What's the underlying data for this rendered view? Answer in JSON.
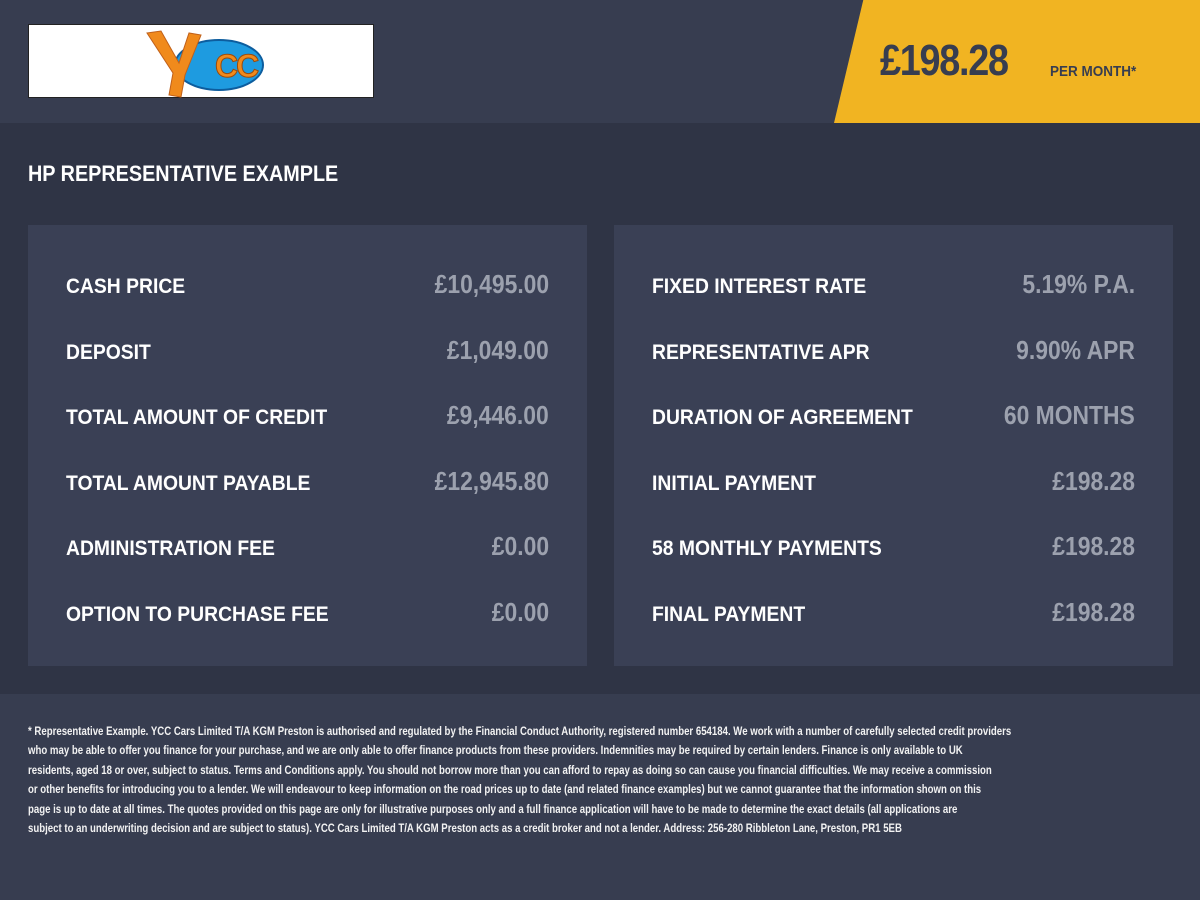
{
  "header": {
    "logo_text": "YCC",
    "price": "£198.28",
    "per_month": "PER MONTH*",
    "brand_color": "#f1b422"
  },
  "title": "HP REPRESENTATIVE EXAMPLE",
  "left_panel": [
    {
      "label": "CASH PRICE",
      "value": "£10,495.00"
    },
    {
      "label": "DEPOSIT",
      "value": "£1,049.00"
    },
    {
      "label": "TOTAL AMOUNT OF CREDIT",
      "value": "£9,446.00"
    },
    {
      "label": "TOTAL AMOUNT PAYABLE",
      "value": "£12,945.80"
    },
    {
      "label": "ADMINISTRATION FEE",
      "value": "£0.00"
    },
    {
      "label": "OPTION TO PURCHASE FEE",
      "value": "£0.00"
    }
  ],
  "right_panel": [
    {
      "label": "FIXED INTEREST RATE",
      "value": "5.19% P.A."
    },
    {
      "label": "REPRESENTATIVE APR",
      "value": "9.90% APR"
    },
    {
      "label": "DURATION OF AGREEMENT",
      "value": "60 MONTHS"
    },
    {
      "label": "INITIAL PAYMENT",
      "value": "£198.28"
    },
    {
      "label": "58 MONTHLY PAYMENTS",
      "value": "£198.28"
    },
    {
      "label": "FINAL PAYMENT",
      "value": "£198.28"
    }
  ],
  "footer_lines": [
    "* Representative Example. YCC Cars Limited T/A KGM Preston  is authorised and regulated by the Financial Conduct Authority, registered number 654184. We work with a number of carefully selected credit providers",
    "who may be able to offer you finance for your purchase, and we are only able to offer finance products from these providers. Indemnities may be required by certain lenders. Finance is only available to UK",
    "residents, aged 18 or over, subject to status. Terms and Conditions apply. You should not borrow more than you can afford to repay as doing so can cause you financial difficulties. We may receive a commission",
    "or other benefits for introducing you to a lender. We will endeavour to keep information on the road prices up to date (and related finance examples) but we cannot guarantee that the information shown on this",
    "page is up to date at all times. The quotes provided on this page are only for illustrative purposes only and a full finance application will have to be made to determine the exact details (all applications are",
    "subject to an underwriting decision and are subject to status). YCC Cars Limited T/A KGM Preston  acts as a credit broker and not a lender. Address:  256-280 Ribbleton Lane, Preston, PR1 5EB"
  ]
}
